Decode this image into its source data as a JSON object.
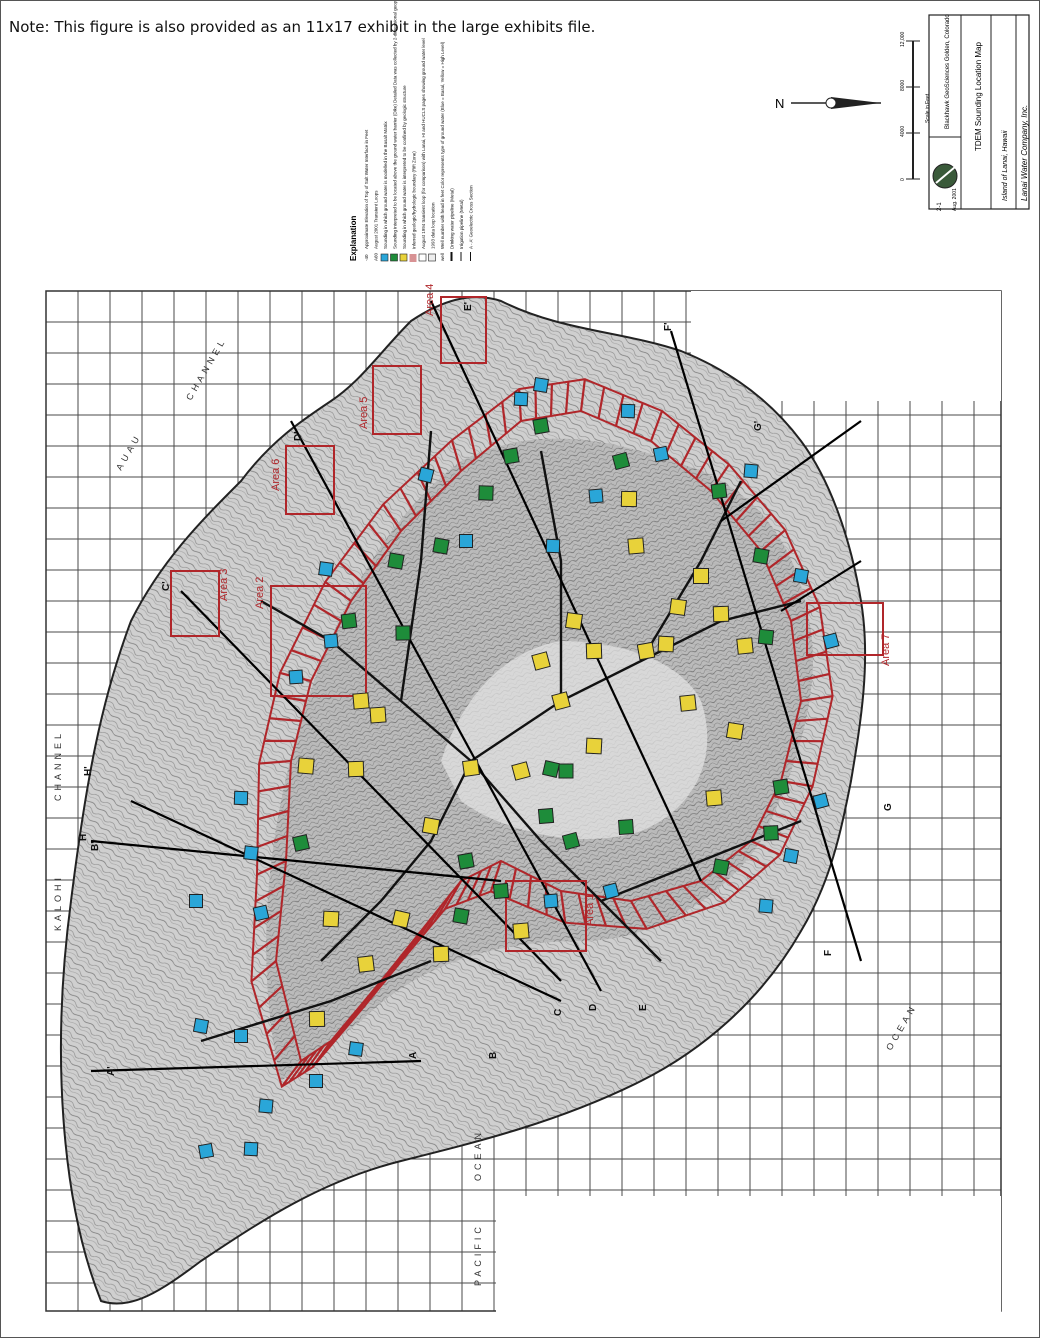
{
  "note": "Note: This figure is also provided as an 11x17 exhibit in the large exhibits file.",
  "title_block": {
    "company": "Lanai Water Company, Inc.",
    "location": "Island of Lanai, Hawaii",
    "map_title": "TDEM Sounding Location Map",
    "consultant": "Blackhawk GeoSciences Golden, Colorado",
    "date": "Aug. 2001",
    "figure": "2-1"
  },
  "north_arrow": "N",
  "scale": {
    "label": "Scale in Feet",
    "ticks": [
      "0",
      "4000",
      "8000",
      "12,000"
    ]
  },
  "legend": {
    "heading": "Explanation",
    "items": [
      {
        "symbol": "-40",
        "text": "Approximate Elevation of Top of Salt Water Interface in Feet"
      },
      {
        "symbol": "A60",
        "text": "August 2001 Transient Loops"
      },
      {
        "symbol": "blue",
        "text": "Sounding in which ground water is modelled in the Basalt Matrix"
      },
      {
        "symbol": "green",
        "text": "Sounding interpreted to be located above the ground water barrier (Dike) Detailed Data was collected by 2-dimensional geophysics data"
      },
      {
        "symbol": "yellow",
        "text": "Sounding in which ground water is interpreted to be confined by geologic structure"
      },
      {
        "symbol": "hatch",
        "text": "Inferred geologic/hydrologic boundary (Rift Zone)"
      },
      {
        "symbol": "box",
        "text": "August 1994 transient loop (for comparison) with Lanai, HI and HUCLS pages showing ground water level"
      },
      {
        "symbol": "box-gray",
        "text": "1993 data loop location"
      },
      {
        "symbol": "well",
        "text": "Well number with head in feet Color represents type of ground water (Blue = Basal, Yellow = High Level)"
      },
      {
        "symbol": "line-thick",
        "text": "Drinking water pipeline (Metal)"
      },
      {
        "symbol": "line-thin",
        "text": "Irrigation pipeline (Metal)"
      },
      {
        "symbol": "section",
        "text": "A - A' Geoelectric Cross Section"
      }
    ]
  },
  "areas": [
    {
      "label": "Area 1"
    },
    {
      "label": "Area 2"
    },
    {
      "label": "Area 3"
    },
    {
      "label": "Area 4"
    },
    {
      "label": "Area 5"
    },
    {
      "label": "Area 6"
    },
    {
      "label": "Area 7"
    }
  ],
  "section_letters": [
    "A",
    "A'",
    "B",
    "B'",
    "C",
    "C'",
    "D",
    "D'",
    "E",
    "E'",
    "F",
    "F'",
    "G",
    "G'",
    "H",
    "H'"
  ],
  "ocean_labels": [
    "PACIFIC",
    "OCEAN",
    "CHANNEL",
    "KALOHI",
    "AUAU",
    "CHANNEL",
    "OCEAN"
  ],
  "colors": {
    "red": "#b0262a",
    "blue": "#2aa6d8",
    "green": "#1e8c3a",
    "yellow": "#e8d23a",
    "grid": "#3a3a3a",
    "terrain": "#6d6d6d"
  }
}
